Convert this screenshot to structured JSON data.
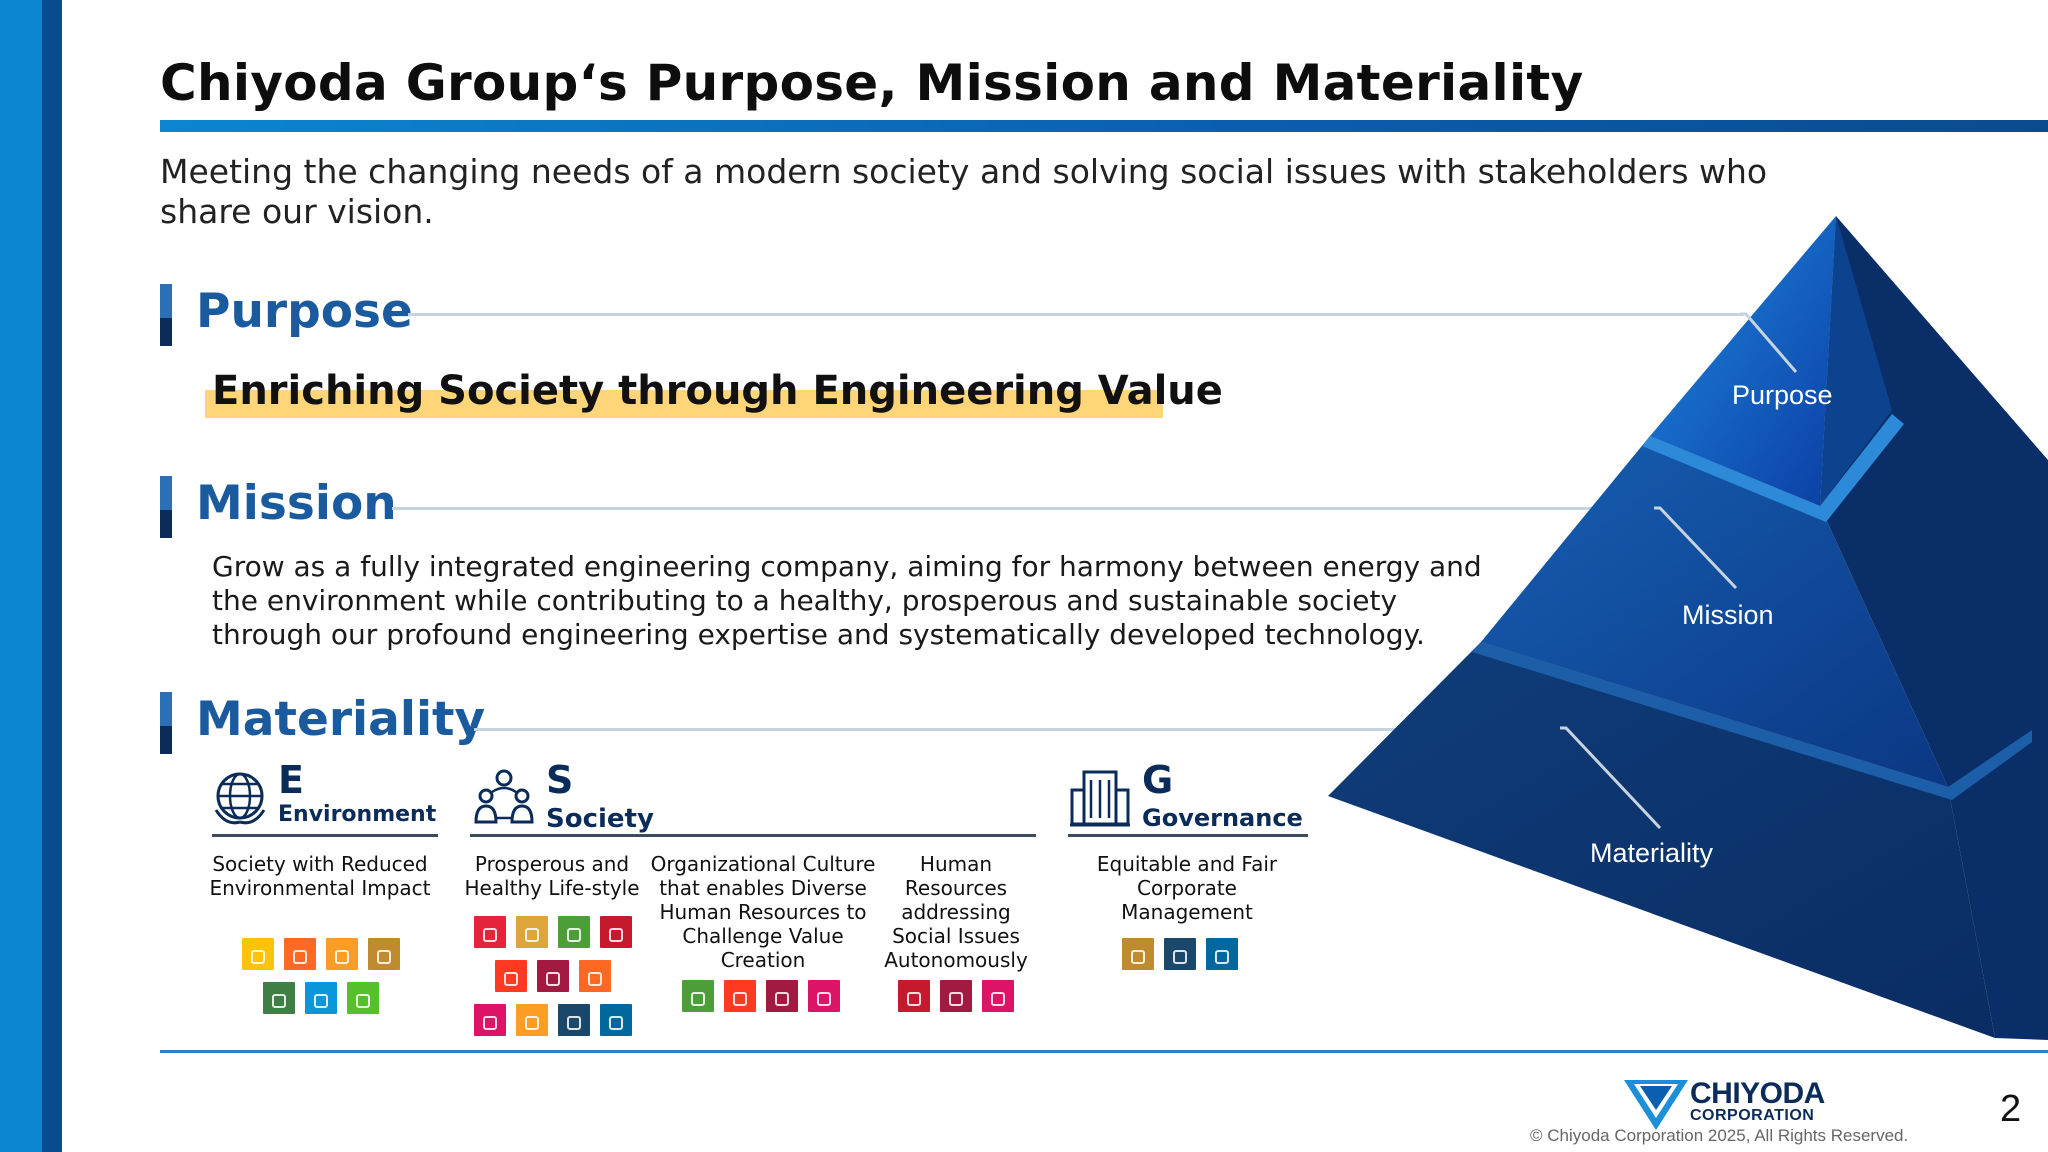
{
  "header": {
    "title": "Chiyoda Group‘s Purpose, Mission and Materiality",
    "subtitle": "Meeting the changing needs of a modern society and solving social issues with stakeholders who share our vision."
  },
  "purpose": {
    "heading": "Purpose",
    "statement": "Enriching Society through Engineering Value"
  },
  "mission": {
    "heading": "Mission",
    "text": "Grow as a fully integrated engineering company, aiming for harmony between energy and the environment while contributing to a healthy, prosperous and sustainable society through our profound engineering expertise and systematically developed technology."
  },
  "materiality": {
    "heading": "Materiality",
    "environment": {
      "letter": "E",
      "label": "Environment",
      "items": [
        {
          "text": "Society with Reduced Environmental Impact",
          "sdg_colors": [
            "#fcc30b",
            "#fd6925",
            "#f99d26",
            "#bf8b2e",
            "#3f7e44",
            "#0a97d9",
            "#56c02b"
          ]
        }
      ]
    },
    "society": {
      "letter": "S",
      "label": "Society",
      "items": [
        {
          "text": "Prosperous and Healthy Life-style",
          "sdg_colors": [
            "#e5243b",
            "#dda63a",
            "#4c9f38",
            "#c5192d",
            "#ff3a21",
            "#a21942",
            "#fd6925",
            "#dd1367",
            "#fd9d24",
            "#19486a",
            "#00689d"
          ]
        },
        {
          "text": "Organizational Culture that enables Diverse Human Resources to Challenge Value Creation",
          "sdg_colors": [
            "#4c9f38",
            "#ff3a21",
            "#a21942",
            "#dd1367"
          ]
        },
        {
          "text": "Human Resources addressing Social Issues Autonomously",
          "sdg_colors": [
            "#c5192d",
            "#a21942",
            "#dd1367"
          ]
        }
      ]
    },
    "governance": {
      "letter": "G",
      "label": "Governance",
      "items": [
        {
          "text": "Equitable and Fair Corporate Management",
          "sdg_colors": [
            "#bf8b2e",
            "#19486a",
            "#00689d"
          ]
        }
      ]
    }
  },
  "pyramid": {
    "labels": [
      "Purpose",
      "Mission",
      "Materiality"
    ]
  },
  "footer": {
    "logo_line_1": "CHIYODA",
    "logo_line_2": "CORPORATION",
    "copyright": "© Chiyoda Corporation 2025, All Rights Reserved.",
    "page_number": "2"
  }
}
